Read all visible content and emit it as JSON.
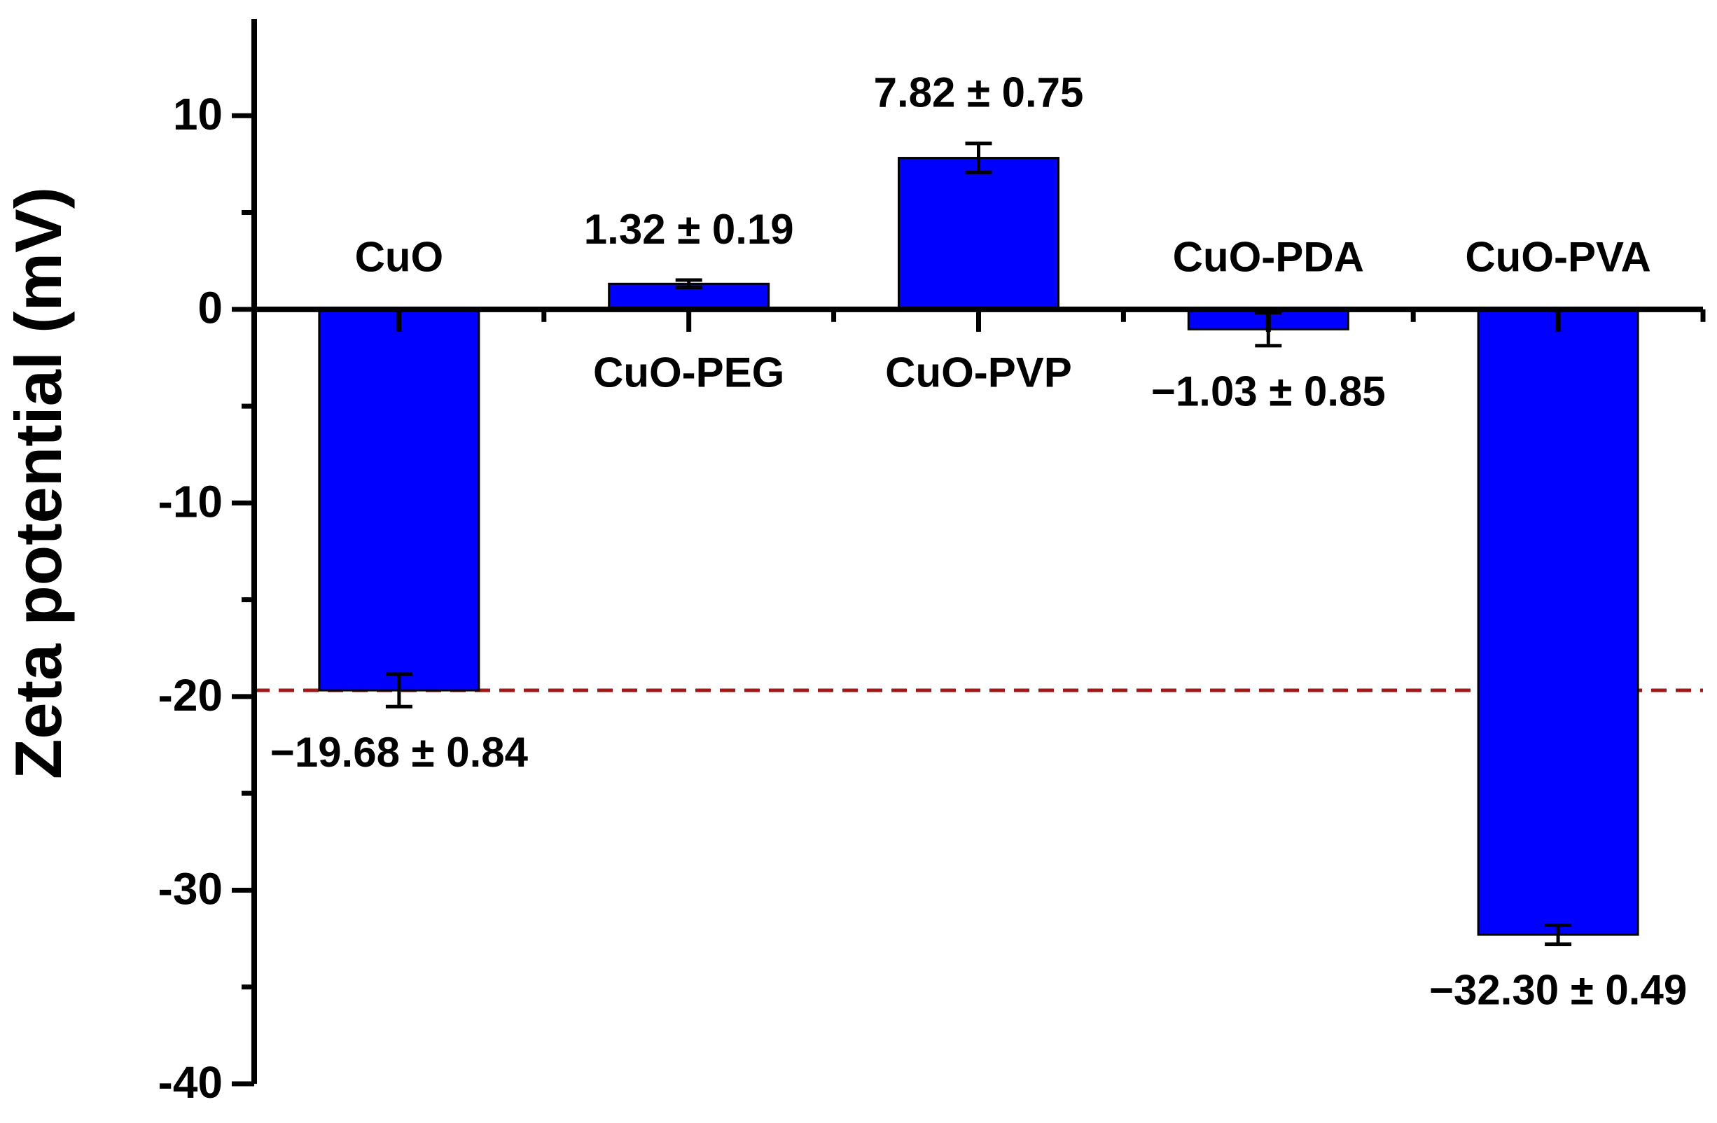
{
  "chart_data": {
    "type": "bar",
    "y_label": "Zeta potential (mV)",
    "categories": [
      "CuO",
      "CuO-PEG",
      "CuO-PVP",
      "CuO-PDA",
      "CuO-PVA"
    ],
    "values": [
      -19.68,
      1.32,
      7.82,
      -1.03,
      -32.3
    ],
    "errors": [
      0.84,
      0.19,
      0.75,
      0.85,
      0.49
    ],
    "value_labels": [
      "−19.68 ± 0.84",
      "1.32 ± 0.19",
      "7.82 ± 0.75",
      "−1.03 ± 0.85",
      "−32.30 ± 0.49"
    ],
    "color": "#0000ff",
    "ylim": [
      -40,
      15
    ],
    "yticks": [
      -40,
      -30,
      -20,
      -10,
      0,
      10
    ],
    "minor_yticks": [
      -35,
      -25,
      -15,
      -5,
      5
    ],
    "reference_line": {
      "value": -19.68,
      "color": "#a01818"
    },
    "grid": false
  }
}
